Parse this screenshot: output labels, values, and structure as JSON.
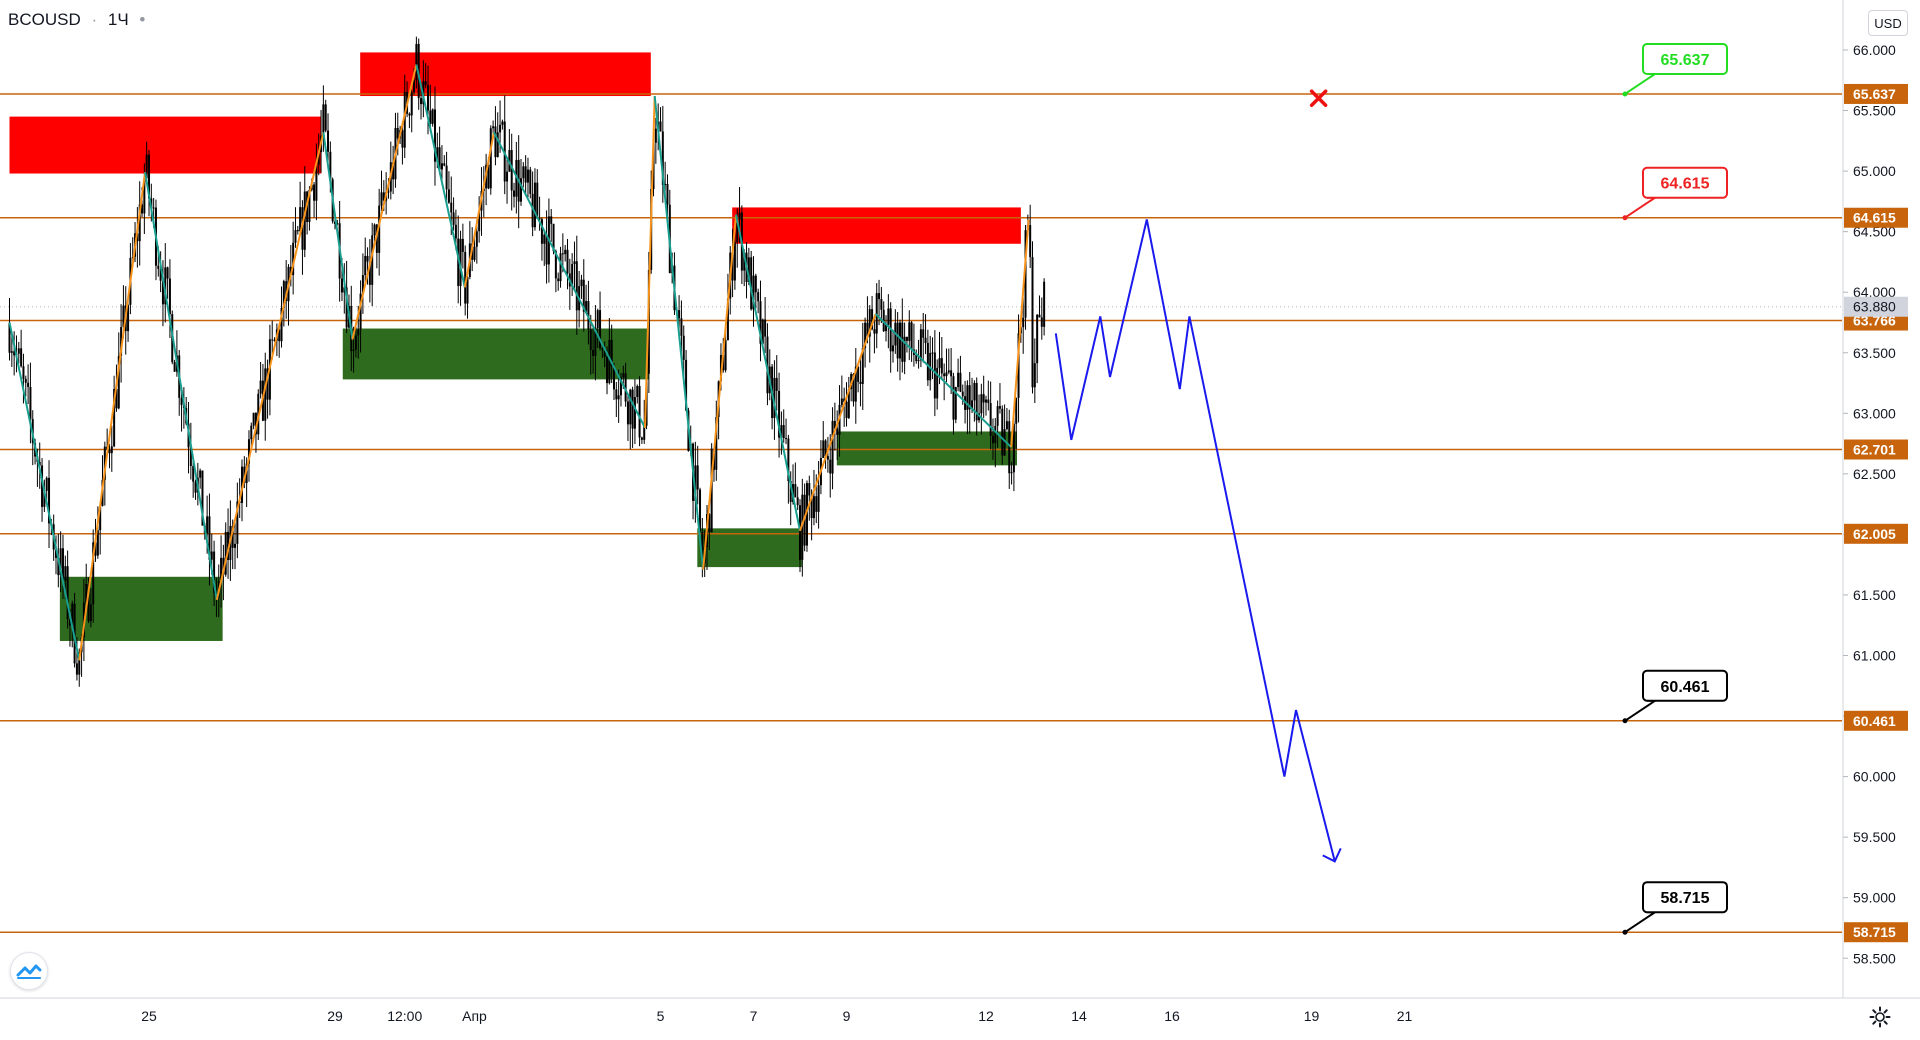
{
  "header": {
    "symbol": "BCOUSD",
    "interval": "1Ч",
    "more": "•"
  },
  "currency_button": "USD",
  "icons": {
    "logo": "tradingview-cloud-icon",
    "settings": "gear-icon",
    "invalidation": "red-x-icon"
  },
  "colors": {
    "level_line": "#c8650c",
    "supply_zone": "#ff0000",
    "demand_zone": "#2e6b1e",
    "wave_up": "#f7931a",
    "wave_down": "#199e8f",
    "projection": "#1a1aee",
    "candle": "#000000",
    "target_green": "#22dd22",
    "target_red": "#ee2222"
  },
  "chart_data": {
    "type": "candlestick",
    "price_scale": {
      "min": 58.3,
      "max": 66.2,
      "ticks": [
        "66.000",
        "65.500",
        "65.000",
        "64.500",
        "64.000",
        "63.500",
        "63.000",
        "62.500",
        "62.000",
        "61.500",
        "61.000",
        "60.500",
        "60.000",
        "59.500",
        "59.000",
        "58.500"
      ]
    },
    "time_axis": {
      "start": "2021-03-22",
      "end": "2021-04-22",
      "labels": [
        {
          "date": "2021-03-25T00:00",
          "text": "25"
        },
        {
          "date": "2021-03-29T00:00",
          "text": "29"
        },
        {
          "date": "2021-03-30T12:00",
          "text": "12:00"
        },
        {
          "date": "2021-04-01T00:00",
          "text": "Апр"
        },
        {
          "date": "2021-04-05T00:00",
          "text": "5"
        },
        {
          "date": "2021-04-07T00:00",
          "text": "7"
        },
        {
          "date": "2021-04-09T00:00",
          "text": "9"
        },
        {
          "date": "2021-04-12T00:00",
          "text": "12"
        },
        {
          "date": "2021-04-14T00:00",
          "text": "14"
        },
        {
          "date": "2021-04-16T00:00",
          "text": "16"
        },
        {
          "date": "2021-04-19T00:00",
          "text": "19"
        },
        {
          "date": "2021-04-21T00:00",
          "text": "21"
        }
      ]
    },
    "last_price": "63.880",
    "levels": [
      {
        "price": 65.637,
        "label": "65.637"
      },
      {
        "price": 64.615,
        "label": "64.615"
      },
      {
        "price": 63.766,
        "label": "63.766"
      },
      {
        "price": 62.701,
        "label": "62.701"
      },
      {
        "price": 62.005,
        "label": "62.005"
      },
      {
        "price": 60.461,
        "label": "60.461"
      },
      {
        "price": 58.715,
        "label": "58.715"
      }
    ],
    "supply_zones": [
      {
        "from": "2021-03-22T00:00",
        "to": "2021-03-28T17:00",
        "top": 65.45,
        "bottom": 64.98
      },
      {
        "from": "2021-03-29T13:00",
        "to": "2021-04-04T19:00",
        "top": 65.98,
        "bottom": 65.62
      },
      {
        "from": "2021-04-06T13:00",
        "to": "2021-04-12T18:00",
        "top": 64.7,
        "bottom": 64.4
      }
    ],
    "demand_zones": [
      {
        "from": "2021-03-23T02:00",
        "to": "2021-03-26T14:00",
        "top": 61.65,
        "bottom": 61.12
      },
      {
        "from": "2021-03-29T04:00",
        "to": "2021-04-04T18:00",
        "top": 63.7,
        "bottom": 63.28
      },
      {
        "from": "2021-04-05T19:00",
        "to": "2021-04-08T01:00",
        "top": 62.05,
        "bottom": 61.73
      },
      {
        "from": "2021-04-08T19:00",
        "to": "2021-04-12T16:00",
        "top": 62.85,
        "bottom": 62.57
      }
    ],
    "zigzag": [
      {
        "t": "2021-03-22T00:00",
        "p": 63.75
      },
      {
        "t": "2021-03-23T12:00",
        "p": 60.96
      },
      {
        "t": "2021-03-24T22:00",
        "p": 64.99
      },
      {
        "t": "2021-03-26T11:00",
        "p": 61.46
      },
      {
        "t": "2021-03-28T18:00",
        "p": 65.32
      },
      {
        "t": "2021-03-29T09:00",
        "p": 63.61
      },
      {
        "t": "2021-03-30T18:00",
        "p": 65.88
      },
      {
        "t": "2021-03-31T19:00",
        "p": 64.04
      },
      {
        "t": "2021-04-01T10:00",
        "p": 65.32
      },
      {
        "t": "2021-04-04T16:00",
        "p": 62.88
      },
      {
        "t": "2021-04-04T21:00",
        "p": 65.62
      },
      {
        "t": "2021-04-05T22:00",
        "p": 61.71
      },
      {
        "t": "2021-04-06T15:00",
        "p": 64.64
      },
      {
        "t": "2021-04-08T00:00",
        "p": 62.03
      },
      {
        "t": "2021-04-09T15:00",
        "p": 63.82
      },
      {
        "t": "2021-04-12T13:00",
        "p": 62.72
      },
      {
        "t": "2021-04-12T22:00",
        "p": 64.6
      }
    ],
    "projection": [
      {
        "t": "2021-04-13T12:00",
        "p": 63.66
      },
      {
        "t": "2021-04-13T20:00",
        "p": 62.78
      },
      {
        "t": "2021-04-14T11:00",
        "p": 63.8
      },
      {
        "t": "2021-04-14T16:00",
        "p": 63.3
      },
      {
        "t": "2021-04-15T11:00",
        "p": 64.6
      },
      {
        "t": "2021-04-16T04:00",
        "p": 63.2
      },
      {
        "t": "2021-04-16T09:00",
        "p": 63.8
      },
      {
        "t": "2021-04-18T10:00",
        "p": 60.0
      },
      {
        "t": "2021-04-18T16:00",
        "p": 60.55
      },
      {
        "t": "2021-04-19T12:00",
        "p": 59.3
      }
    ],
    "targets": [
      {
        "price": 65.637,
        "label": "65.637",
        "style": "green"
      },
      {
        "price": 64.615,
        "label": "64.615",
        "style": "red"
      },
      {
        "price": 60.461,
        "label": "60.461",
        "style": "black"
      },
      {
        "price": 58.715,
        "label": "58.715",
        "style": "black"
      }
    ],
    "invalidation_marker": {
      "t": "2021-04-19T14:00",
      "p": 65.75
    },
    "candles_approx": {
      "note_from_image": "hourly candles follow the zigzag path",
      "end": "2021-04-13T06:00",
      "last_close": 63.88
    }
  }
}
